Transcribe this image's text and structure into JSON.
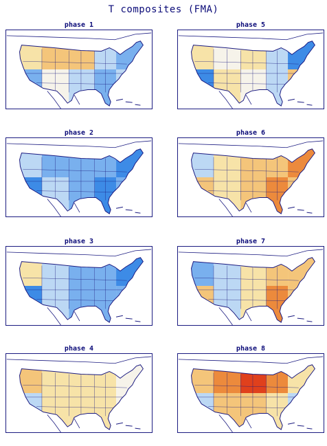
{
  "title": "T composites (FMA)",
  "colors": {
    "cold_strong": "#3d8be6",
    "cold": "#79b0ee",
    "cool": "#bcd8f4",
    "neutral": "#f6f3ea",
    "warm": "#f7e3a8",
    "warmer": "#f4c57a",
    "hot": "#ec8a3c",
    "very_hot": "#e0401c",
    "outline": "#1a1a80"
  },
  "panels": [
    {
      "label": "phase 1",
      "pattern": [
        "warm",
        "warmer",
        "warmer",
        "cool",
        "cold",
        "cold",
        "neutral",
        "cool",
        "cold",
        "cool"
      ]
    },
    {
      "label": "phase 2",
      "pattern": [
        "cool",
        "cold",
        "cold",
        "cold",
        "cold_strong",
        "cold_strong",
        "cool",
        "cold",
        "cold_strong",
        "cold"
      ]
    },
    {
      "label": "phase 3",
      "pattern": [
        "warm",
        "cool",
        "cold",
        "cold",
        "cold_strong",
        "cold_strong",
        "cool",
        "cold",
        "cold",
        "cold"
      ]
    },
    {
      "label": "phase 4",
      "pattern": [
        "warmer",
        "warm",
        "warm",
        "warm",
        "neutral",
        "cool",
        "warm",
        "warm",
        "warm",
        "neutral"
      ]
    },
    {
      "label": "phase 5",
      "pattern": [
        "warm",
        "neutral",
        "warm",
        "cool",
        "cold_strong",
        "cold_strong",
        "warm",
        "neutral",
        "cool",
        "warmer"
      ]
    },
    {
      "label": "phase 6",
      "pattern": [
        "cool",
        "warm",
        "warmer",
        "warmer",
        "hot",
        "warmer",
        "warm",
        "warmer",
        "hot",
        "warmer"
      ]
    },
    {
      "label": "phase 7",
      "pattern": [
        "cold",
        "cool",
        "warm",
        "warmer",
        "warmer",
        "warmer",
        "cool",
        "warm",
        "hot",
        "warmer"
      ]
    },
    {
      "label": "phase 8",
      "pattern": [
        "warmer",
        "hot",
        "very_hot",
        "hot",
        "warm",
        "cool",
        "warmer",
        "warmer",
        "warm",
        "cool"
      ]
    }
  ]
}
